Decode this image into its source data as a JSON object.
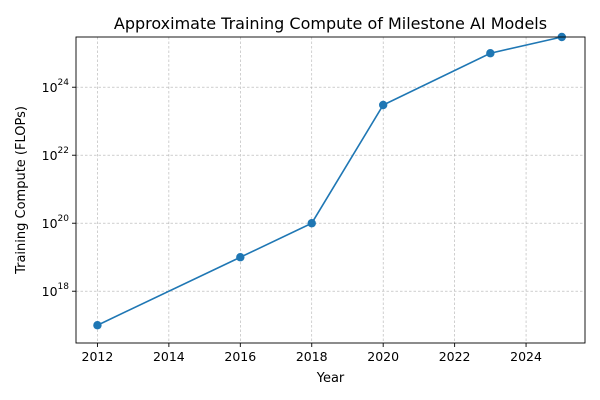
{
  "chart_data": {
    "type": "line",
    "title": "Approximate Training Compute of Milestone AI Models",
    "xlabel": "Year",
    "ylabel": "Training Compute (FLOPs)",
    "yscale": "log",
    "grid": true,
    "xlim": [
      2011.4,
      2025.65
    ],
    "ylim": [
      3e+16,
      3e+25
    ],
    "xticks": [
      2012,
      2014,
      2016,
      2018,
      2020,
      2022,
      2024
    ],
    "yticks": [
      {
        "value": 1e+18,
        "base": "10",
        "exp": "18"
      },
      {
        "value": 1e+20,
        "base": "10",
        "exp": "20"
      },
      {
        "value": 1e+22,
        "base": "10",
        "exp": "22"
      },
      {
        "value": 1e+24,
        "base": "10",
        "exp": "24"
      }
    ],
    "series": [
      {
        "color": "#1f77b4",
        "x": [
          2012,
          2016,
          2018,
          2020,
          2023,
          2025
        ],
        "y": [
          1e+17,
          1e+19,
          1e+20,
          3e+23,
          1e+25,
          3e+25
        ]
      }
    ]
  }
}
